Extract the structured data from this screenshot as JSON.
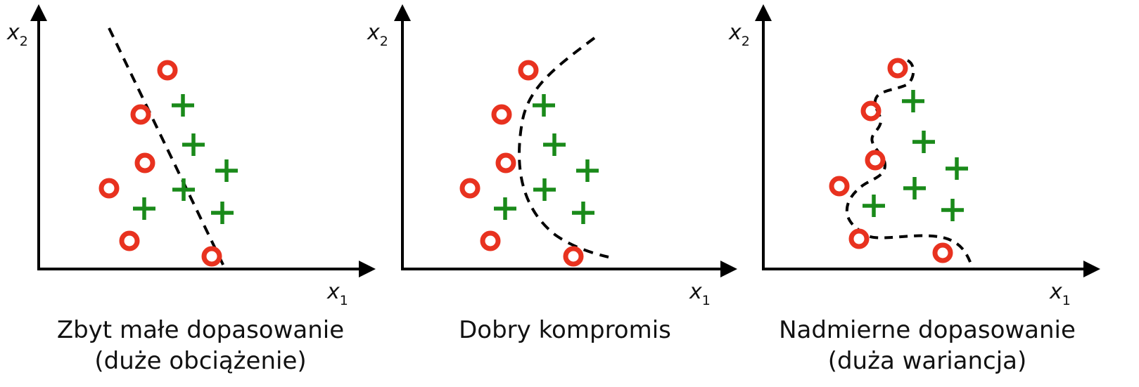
{
  "colors": {
    "background": "#ffffff",
    "axis": "#000000",
    "circle": "#e8321f",
    "plus": "#1a8a1a",
    "boundary": "#000000"
  },
  "axis_labels": {
    "x_var": "x",
    "x_sub": "1",
    "y_var": "x",
    "y_sub": "2"
  },
  "panels": [
    {
      "id": "underfit",
      "caption_line1": "Zbyt małe dopasowanie",
      "caption_line2": "(duże obciążenie)"
    },
    {
      "id": "balanced",
      "caption_line1": "Dobry kompromis",
      "caption_line2": ""
    },
    {
      "id": "overfit",
      "caption_line1": "Nadmierne dopasowanie",
      "caption_line2": "(duża wariancja)"
    }
  ],
  "legend_symbols": {
    "class_a": "circle-marker",
    "class_b": "plus-marker"
  }
}
